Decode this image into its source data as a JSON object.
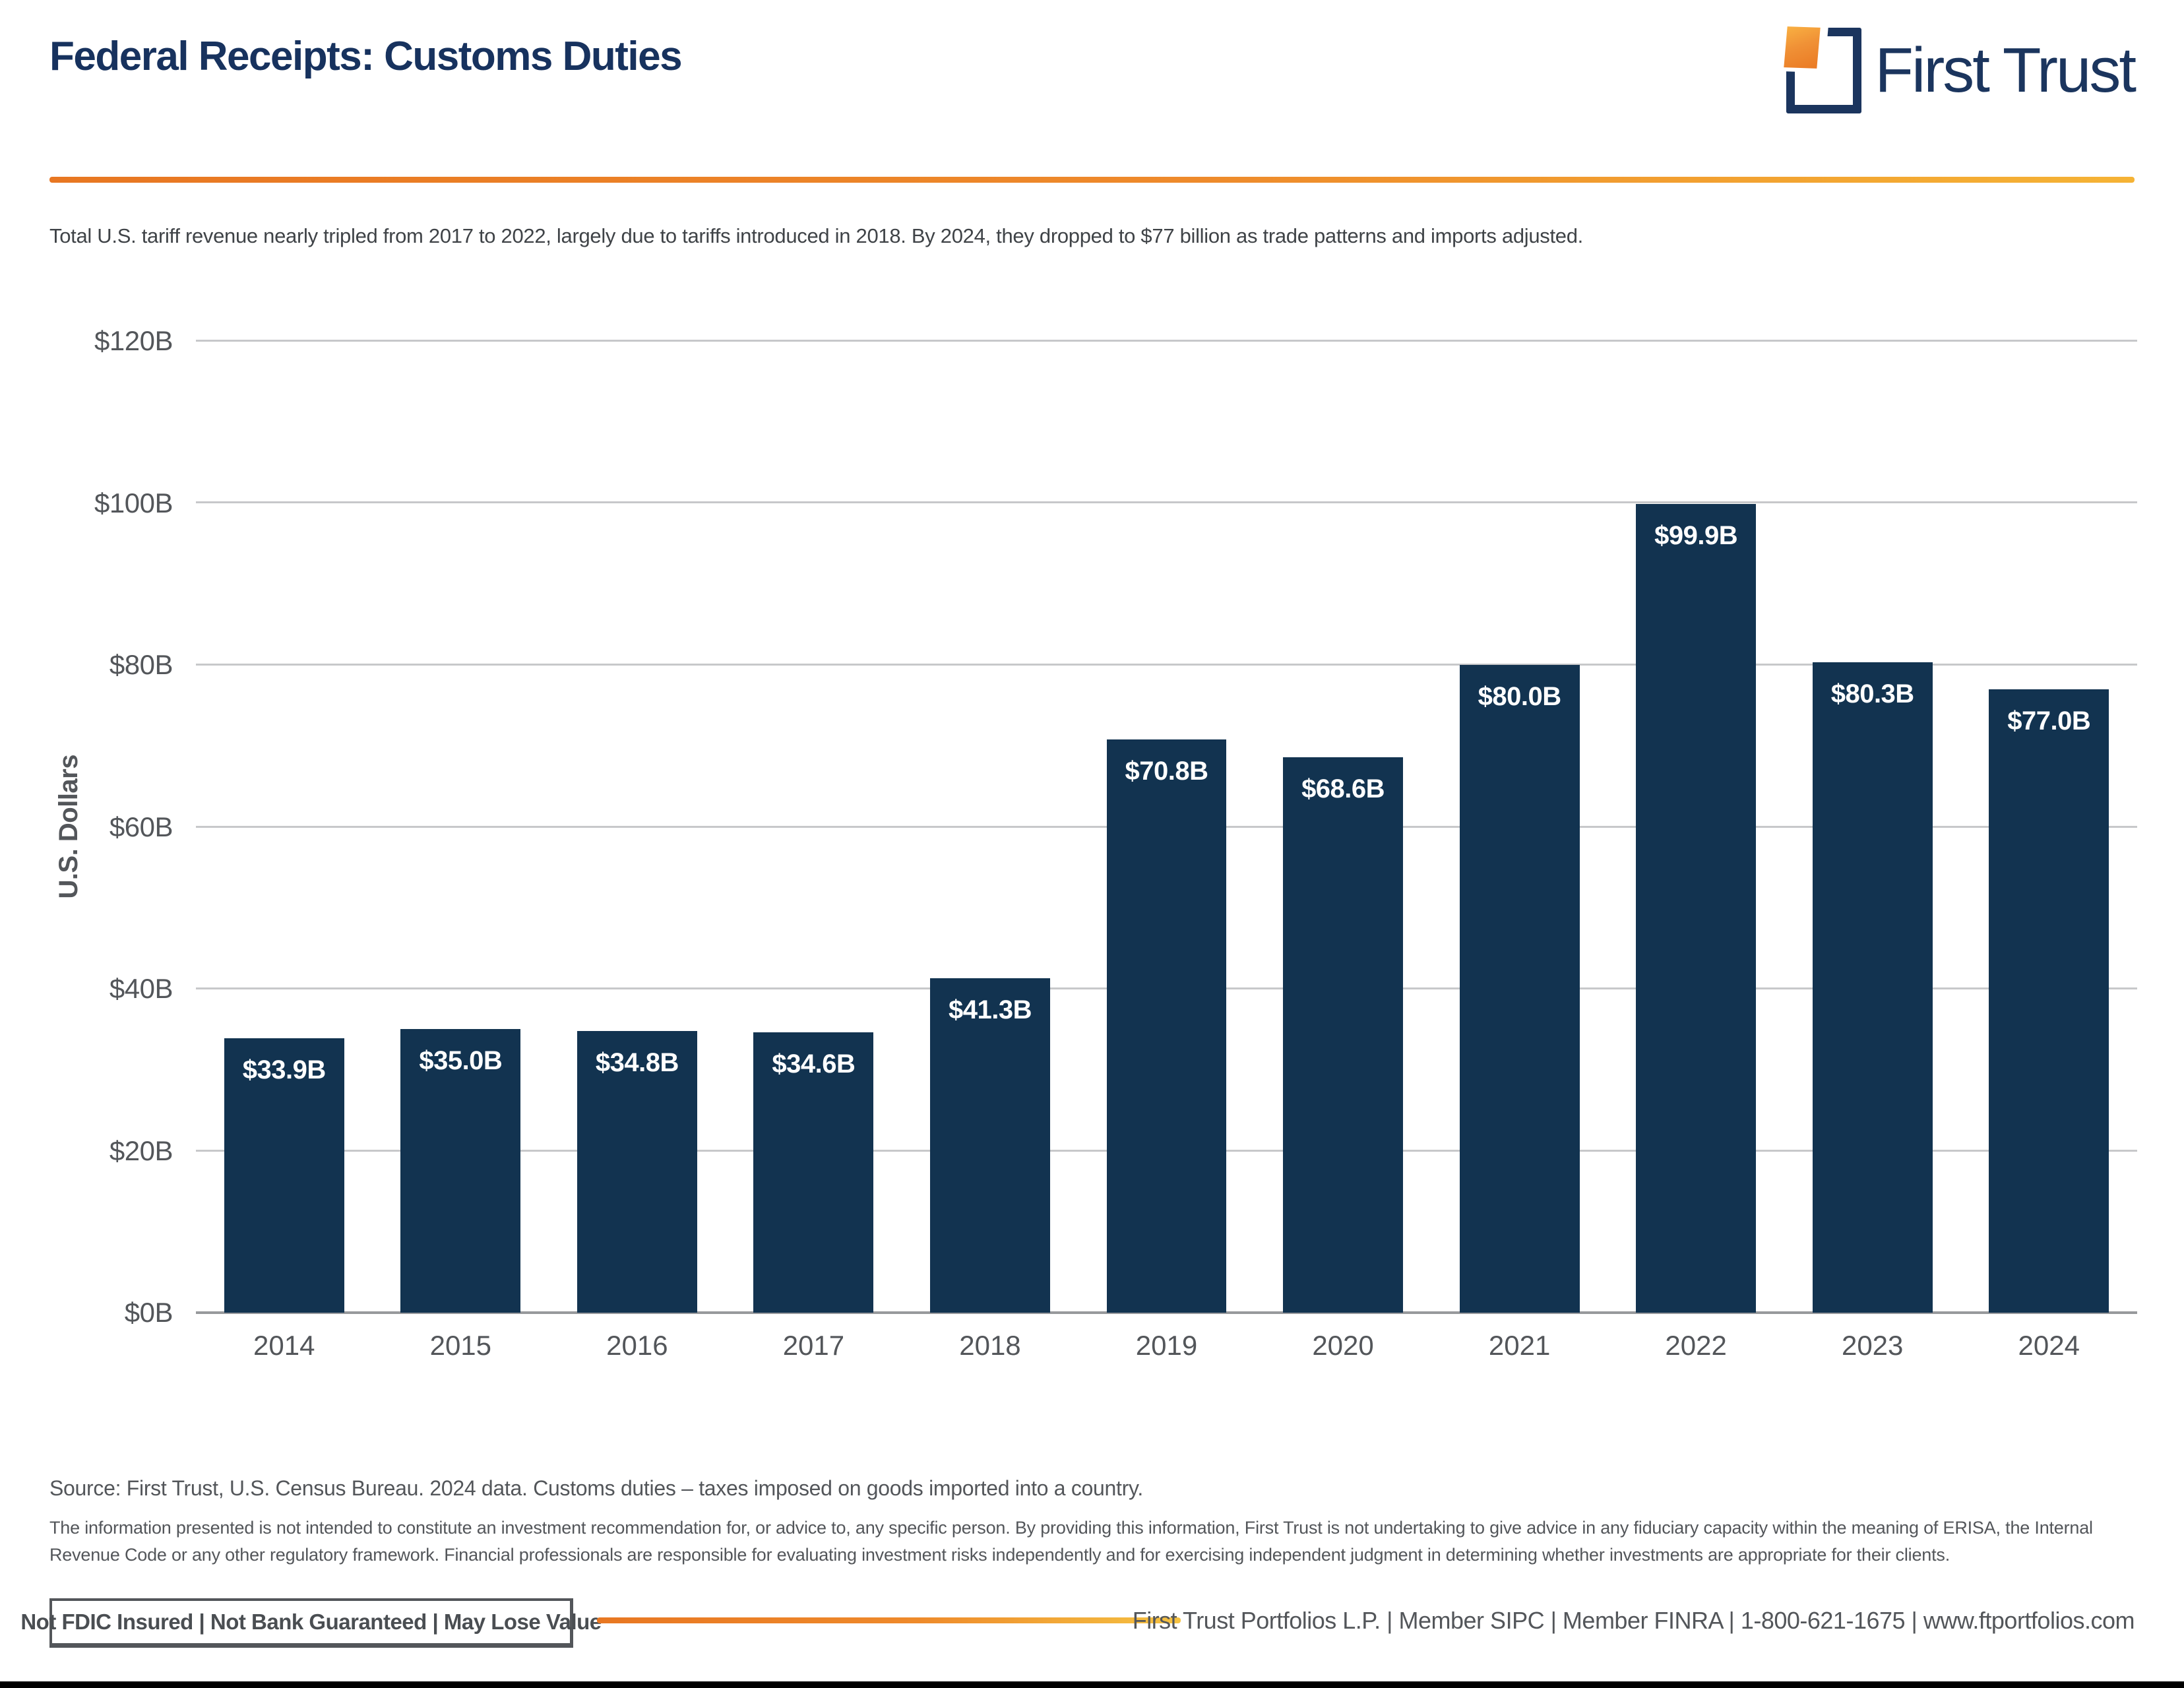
{
  "header": {
    "title": "Federal Receipts: Customs Duties",
    "brand": "First Trust"
  },
  "subtitle": "Total U.S. tariff revenue nearly tripled from 2017 to 2022, largely due to tariffs introduced in 2018. By 2024, they dropped to $77 billion as trade patterns and imports adjusted.",
  "chart_data": {
    "type": "bar",
    "categories": [
      "2014",
      "2015",
      "2016",
      "2017",
      "2018",
      "2019",
      "2020",
      "2021",
      "2022",
      "2023",
      "2024"
    ],
    "values": [
      33.9,
      35.0,
      34.8,
      34.6,
      41.3,
      70.8,
      68.6,
      80.0,
      99.9,
      80.3,
      77.0
    ],
    "bar_labels": [
      "$33.9B",
      "$35.0B",
      "$34.8B",
      "$34.6B",
      "$41.3B",
      "$70.8B",
      "$68.6B",
      "$80.0B",
      "$99.9B",
      "$80.3B",
      "$77.0B"
    ],
    "title": "Federal Receipts: Customs Duties",
    "xlabel": "",
    "ylabel": "U.S. Dollars",
    "yticks": [
      "$120B",
      "$100B",
      "$80B",
      "$60B",
      "$40B",
      "$20B",
      "$0B"
    ],
    "ylim": [
      0,
      120
    ],
    "grid": true,
    "legend": "none",
    "bar_color": "#123350",
    "bar_label_color": "#FFFFFF"
  },
  "footnotes": {
    "source": "Source: First Trust, U.S. Census Bureau. 2024 data. Customs duties – taxes imposed on goods imported into a country.",
    "disclaimer": "The information presented is not intended to constitute an investment recommendation for, or advice to, any specific person. By providing this information, First Trust is not undertaking to give advice in any fiduciary capacity within the meaning of ERISA, the Internal Revenue Code or any other regulatory framework. Financial professionals are responsible for evaluating investment risks independently and for exercising independent judgment in determining whether investments are appropriate for their clients."
  },
  "footer": {
    "fdic_label": "Not FDIC Insured | Not Bank Guaranteed | May Lose Value",
    "company_line": "First Trust Portfolios L.P.  |  Member SIPC  |  Member FINRA  |  1-800-621-1675  |  www.ftportfolios.com"
  },
  "colors": {
    "accent_navy": "#17325E",
    "bar_navy": "#123350",
    "accent_orange": "#E87722",
    "accent_gold": "#F5B335",
    "text_gray": "#53565A",
    "gridline_gray": "#C7C8CA"
  }
}
